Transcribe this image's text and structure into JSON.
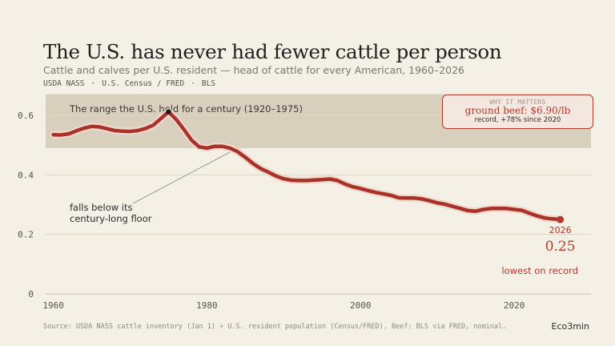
{
  "header": {
    "title": "The U.S. has never had fewer cattle per person",
    "subtitle": "Cattle and calves per U.S. resident — head of cattle for every American, 1960–2026",
    "sources": [
      "USDA NASS",
      "U.S. Census / FRED",
      "BLS"
    ],
    "sources_separator": "·"
  },
  "chart_data": {
    "type": "line",
    "title": "The U.S. has never had fewer cattle per person",
    "xlabel": "",
    "ylabel": "",
    "xlim": [
      1959,
      2030
    ],
    "ylim": [
      0,
      0.67
    ],
    "x_ticks": [
      1960,
      1980,
      2000,
      2020
    ],
    "y_ticks": [
      0,
      0.2,
      0.4,
      0.6
    ],
    "y_tick_labels": [
      "0",
      "0.2",
      "0.4",
      "0.6"
    ],
    "grid": "horizontal",
    "series": [
      {
        "color": "#a8322a",
        "points": [
          [
            1960,
            0.535
          ],
          [
            1961,
            0.534
          ],
          [
            1962,
            0.538
          ],
          [
            1963,
            0.548
          ],
          [
            1964,
            0.557
          ],
          [
            1965,
            0.563
          ],
          [
            1966,
            0.561
          ],
          [
            1967,
            0.555
          ],
          [
            1968,
            0.549
          ],
          [
            1969,
            0.547
          ],
          [
            1970,
            0.546
          ],
          [
            1971,
            0.549
          ],
          [
            1972,
            0.556
          ],
          [
            1973,
            0.567
          ],
          [
            1974,
            0.589
          ],
          [
            1975,
            0.612
          ],
          [
            1976,
            0.586
          ],
          [
            1977,
            0.553
          ],
          [
            1978,
            0.517
          ],
          [
            1979,
            0.494
          ],
          [
            1980,
            0.49
          ],
          [
            1981,
            0.496
          ],
          [
            1982,
            0.496
          ],
          [
            1983,
            0.49
          ],
          [
            1984,
            0.478
          ],
          [
            1985,
            0.459
          ],
          [
            1986,
            0.438
          ],
          [
            1987,
            0.421
          ],
          [
            1988,
            0.409
          ],
          [
            1989,
            0.396
          ],
          [
            1990,
            0.387
          ],
          [
            1991,
            0.382
          ],
          [
            1992,
            0.381
          ],
          [
            1993,
            0.381
          ],
          [
            1994,
            0.383
          ],
          [
            1995,
            0.384
          ],
          [
            1996,
            0.386
          ],
          [
            1997,
            0.381
          ],
          [
            1998,
            0.369
          ],
          [
            1999,
            0.36
          ],
          [
            2000,
            0.354
          ],
          [
            2001,
            0.347
          ],
          [
            2002,
            0.341
          ],
          [
            2003,
            0.336
          ],
          [
            2004,
            0.331
          ],
          [
            2005,
            0.323
          ],
          [
            2006,
            0.322
          ],
          [
            2007,
            0.322
          ],
          [
            2008,
            0.319
          ],
          [
            2009,
            0.313
          ],
          [
            2010,
            0.306
          ],
          [
            2011,
            0.301
          ],
          [
            2012,
            0.294
          ],
          [
            2013,
            0.287
          ],
          [
            2014,
            0.28
          ],
          [
            2015,
            0.278
          ],
          [
            2016,
            0.284
          ],
          [
            2017,
            0.287
          ],
          [
            2018,
            0.287
          ],
          [
            2019,
            0.287
          ],
          [
            2020,
            0.284
          ],
          [
            2021,
            0.281
          ],
          [
            2022,
            0.271
          ],
          [
            2023,
            0.262
          ],
          [
            2024,
            0.255
          ],
          [
            2025,
            0.252
          ],
          [
            2026,
            0.25
          ]
        ]
      }
    ],
    "band": {
      "x": [
        1920,
        1975
      ],
      "y": [
        0.49,
        0.612
      ],
      "label": "The range the U.S. held for a century  (1920–1975)",
      "color": "#d3c9b5"
    },
    "peak_marker": {
      "x": 1975,
      "y": 0.612,
      "color": "#1c1c1c"
    },
    "annotation": {
      "lines": [
        "falls below its",
        "century-long floor"
      ],
      "target": [
        1983,
        0.49
      ]
    },
    "end_label": {
      "year": "2026",
      "value": "0.25",
      "note": "lowest on record",
      "color": "#b03a2e"
    }
  },
  "callout": {
    "kicker": "WHY IT MATTERS",
    "value": "ground beef: $6.90/lb",
    "note": "record, +78% since 2020"
  },
  "footer": {
    "source": "Source: USDA NASS cattle inventory (Jan 1) ÷ U.S. resident population (Census/FRED). Beef: BLS via FRED, nominal.",
    "brand": "Eco3min"
  }
}
